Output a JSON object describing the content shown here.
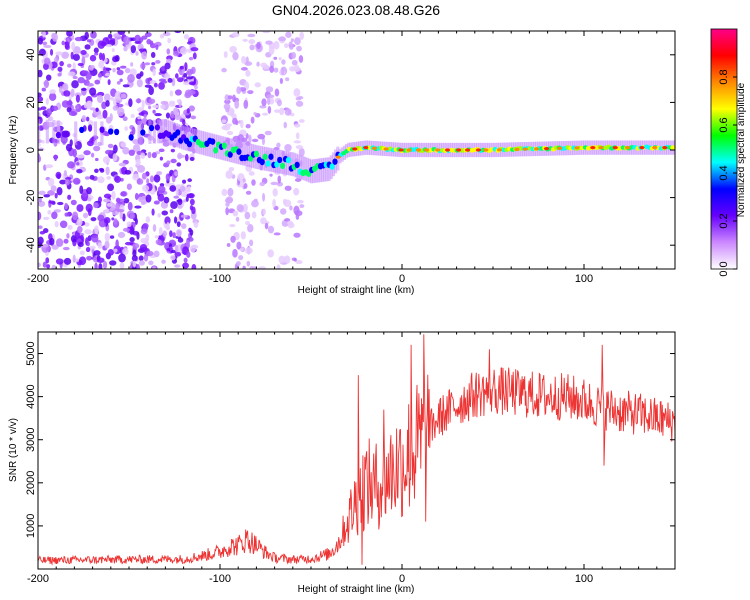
{
  "title": "GN04.2026.023.08.48.G26",
  "chart_data": [
    {
      "type": "heatmap",
      "name": "spectrogram",
      "xlabel": "Height of straight line (km)",
      "ylabel": "Frequency (Hz)",
      "xlim": [
        -200,
        150
      ],
      "ylim": [
        -50,
        50
      ],
      "xticks": [
        -200,
        -100,
        0,
        100
      ],
      "yticks": [
        -40,
        -20,
        0,
        20,
        40
      ],
      "colorbar": {
        "label": "Normalized spectral amplitude",
        "range": [
          0,
          1
        ],
        "ticks": [
          0.0,
          0.2,
          0.4,
          0.6,
          0.8
        ],
        "colors": [
          "#ffffff",
          "#cc88ff",
          "#6600ff",
          "#0000ff",
          "#00ffff",
          "#00ff00",
          "#ffff00",
          "#ff8800",
          "#ff0000",
          "#ff0088"
        ]
      },
      "ridge": {
        "x": [
          -200,
          -180,
          -150,
          -130,
          -120,
          -100,
          -80,
          -60,
          -50,
          -40,
          -35,
          -30,
          -20,
          0,
          50,
          100,
          150
        ],
        "y": [
          8,
          7,
          7,
          8,
          5,
          1,
          -3,
          -6,
          -9,
          -8,
          -3,
          0,
          1,
          0,
          0,
          1,
          1
        ]
      },
      "noise_bands": [
        {
          "x_range": [
            -200,
            -113
          ],
          "density": "high"
        },
        {
          "x_range": [
            -98,
            -55
          ],
          "density": "low"
        }
      ]
    },
    {
      "type": "line",
      "name": "snr",
      "xlabel": "Height of straight line (km)",
      "ylabel": "SNR (10 * v/v)",
      "xlim": [
        -200,
        150
      ],
      "ylim": [
        0,
        5500
      ],
      "xticks": [
        -200,
        -100,
        0,
        100
      ],
      "yticks": [
        1000,
        2000,
        3000,
        4000,
        5000
      ],
      "color": "#ee3333",
      "series": {
        "x": [
          -200,
          -150,
          -120,
          -110,
          -100,
          -95,
          -90,
          -85,
          -80,
          -75,
          -70,
          -60,
          -50,
          -40,
          -35,
          -30,
          -25,
          -20,
          -15,
          -10,
          -5,
          0,
          5,
          10,
          15,
          20,
          30,
          40,
          50,
          60,
          70,
          80,
          90,
          100,
          110,
          120,
          130,
          140,
          150
        ],
        "y": [
          200,
          220,
          230,
          300,
          400,
          520,
          550,
          700,
          550,
          380,
          260,
          220,
          240,
          350,
          600,
          1100,
          1600,
          2000,
          1900,
          2100,
          2300,
          2500,
          2700,
          2900,
          3200,
          3500,
          3800,
          4050,
          4150,
          4100,
          4050,
          4000,
          4000,
          3900,
          3750,
          3650,
          3600,
          3500,
          3400
        ]
      },
      "spikes": [
        {
          "x": -24,
          "y": 4500
        },
        {
          "x": -22,
          "y": 100
        },
        {
          "x": -10,
          "y": 3700
        },
        {
          "x": 5,
          "y": 5200
        },
        {
          "x": 12,
          "y": 5450
        },
        {
          "x": 13,
          "y": 1100
        },
        {
          "x": 48,
          "y": 5100
        },
        {
          "x": 110,
          "y": 5200
        },
        {
          "x": 111,
          "y": 2400
        }
      ]
    }
  ]
}
